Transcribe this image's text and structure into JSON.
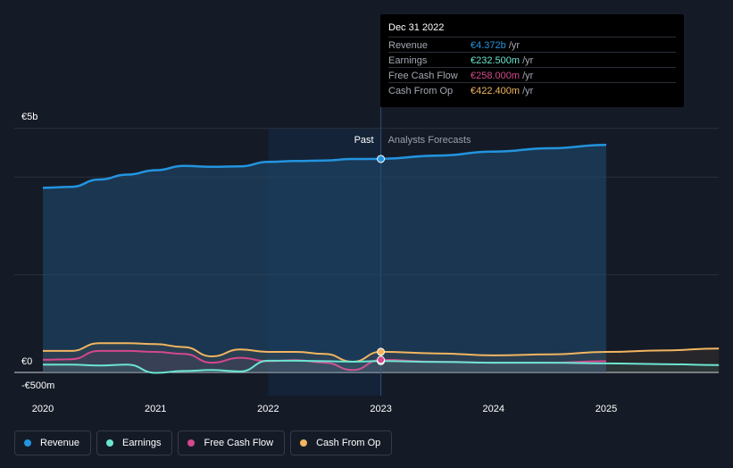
{
  "tooltip": {
    "date": "Dec 31 2022",
    "rows": [
      {
        "label": "Revenue",
        "value": "€4.372b",
        "unit": "/yr",
        "color": "#2394df"
      },
      {
        "label": "Earnings",
        "value": "€232.500m",
        "unit": "/yr",
        "color": "#6ce5d1"
      },
      {
        "label": "Free Cash Flow",
        "value": "€258.000m",
        "unit": "/yr",
        "color": "#d4488d"
      },
      {
        "label": "Cash From Op",
        "value": "€422.400m",
        "unit": "/yr",
        "color": "#f2b560"
      }
    ]
  },
  "legend": [
    {
      "label": "Revenue",
      "color": "#2394df"
    },
    {
      "label": "Earnings",
      "color": "#6ce5d1"
    },
    {
      "label": "Free Cash Flow",
      "color": "#d4488d"
    },
    {
      "label": "Cash From Op",
      "color": "#f2b560"
    }
  ],
  "chart_data": {
    "type": "area",
    "past_label": "Past",
    "forecast_label": "Analysts Forecasts",
    "divider_x": 2023.0,
    "y_ticks": [
      {
        "value": 5000,
        "label": "€5b"
      },
      {
        "value": 0,
        "label": "€0"
      },
      {
        "value": -500,
        "label": "-€500m"
      }
    ],
    "x_ticks": [
      2020,
      2021,
      2022,
      2023,
      2024,
      2025
    ],
    "xlim": [
      2019.75,
      2026.0
    ],
    "ylim": [
      -500,
      5000
    ],
    "series": [
      {
        "name": "Revenue",
        "color": "#2394df",
        "fill": true,
        "points": [
          [
            2020.0,
            3780
          ],
          [
            2020.25,
            3800
          ],
          [
            2020.5,
            3950
          ],
          [
            2020.75,
            4050
          ],
          [
            2021.0,
            4140
          ],
          [
            2021.25,
            4230
          ],
          [
            2021.5,
            4210
          ],
          [
            2021.75,
            4220
          ],
          [
            2022.0,
            4310
          ],
          [
            2022.25,
            4330
          ],
          [
            2022.5,
            4340
          ],
          [
            2022.75,
            4370
          ],
          [
            2023.0,
            4372
          ],
          [
            2023.5,
            4440
          ],
          [
            2024.0,
            4520
          ],
          [
            2024.5,
            4590
          ],
          [
            2025.0,
            4660
          ]
        ]
      },
      {
        "name": "Earnings",
        "color": "#6ce5d1",
        "fill": false,
        "points": [
          [
            2020.0,
            160
          ],
          [
            2020.25,
            160
          ],
          [
            2020.5,
            140
          ],
          [
            2020.75,
            160
          ],
          [
            2021.0,
            -10
          ],
          [
            2021.25,
            30
          ],
          [
            2021.5,
            50
          ],
          [
            2021.75,
            20
          ],
          [
            2022.0,
            240
          ],
          [
            2022.25,
            240
          ],
          [
            2022.5,
            230
          ],
          [
            2022.75,
            220
          ],
          [
            2023.0,
            232.5
          ],
          [
            2023.5,
            215
          ],
          [
            2024.0,
            200
          ],
          [
            2024.5,
            200
          ],
          [
            2025.0,
            185
          ],
          [
            2025.5,
            170
          ],
          [
            2026.0,
            150
          ]
        ]
      },
      {
        "name": "Free Cash Flow",
        "color": "#d4488d",
        "fill": false,
        "points": [
          [
            2020.0,
            260
          ],
          [
            2020.25,
            270
          ],
          [
            2020.5,
            440
          ],
          [
            2020.75,
            440
          ],
          [
            2021.0,
            420
          ],
          [
            2021.25,
            380
          ],
          [
            2021.5,
            200
          ],
          [
            2021.75,
            300
          ],
          [
            2022.0,
            230
          ],
          [
            2022.25,
            250
          ],
          [
            2022.5,
            200
          ],
          [
            2022.75,
            50
          ],
          [
            2023.0,
            258
          ],
          [
            2023.5,
            220
          ],
          [
            2024.0,
            200
          ],
          [
            2024.5,
            200
          ],
          [
            2025.0,
            230
          ]
        ]
      },
      {
        "name": "Cash From Op",
        "color": "#f2b560",
        "fill": false,
        "points": [
          [
            2020.0,
            440
          ],
          [
            2020.25,
            440
          ],
          [
            2020.5,
            600
          ],
          [
            2020.75,
            600
          ],
          [
            2021.0,
            580
          ],
          [
            2021.25,
            520
          ],
          [
            2021.5,
            330
          ],
          [
            2021.75,
            470
          ],
          [
            2022.0,
            420
          ],
          [
            2022.25,
            420
          ],
          [
            2022.5,
            380
          ],
          [
            2022.75,
            220
          ],
          [
            2023.0,
            422.4
          ],
          [
            2023.5,
            390
          ],
          [
            2024.0,
            350
          ],
          [
            2024.5,
            370
          ],
          [
            2025.0,
            420
          ],
          [
            2025.5,
            450
          ],
          [
            2026.0,
            490
          ]
        ]
      }
    ]
  }
}
